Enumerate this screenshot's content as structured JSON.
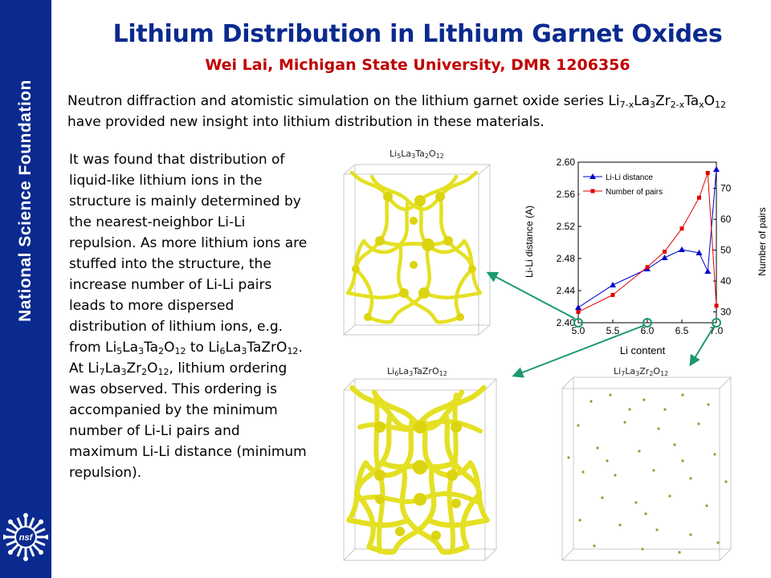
{
  "sidebar": {
    "title": "National Science Foundation",
    "logo_text": "nsf"
  },
  "header": {
    "title": "Lithium Distribution in Lithium Garnet Oxides",
    "subtitle": "Wei Lai, Michigan State University, DMR 1206356",
    "title_color": "#0b2a8f",
    "subtitle_color": "#c00000"
  },
  "intro": {
    "t1": "Neutron diffraction and atomistic simulation on the lithium garnet oxide series Li",
    "s1": "7-x",
    "t2": "La",
    "s2": "3",
    "t3": "Zr",
    "s3": "2-x",
    "t4": "Ta",
    "s4": "x",
    "t5": "O",
    "s5": "12",
    "t6": " have provided new insight into lithium distribution in these materials."
  },
  "body": {
    "p1": "It was found that distribution of liquid-like lithium ions in the structure is mainly determined by the nearest-neighbor Li-Li repulsion. As more lithium ions are stuffed into the structure, the increase number of Li-Li pairs leads to more dispersed distribution of lithium ions, e.g. from ",
    "f1": {
      "a": "Li",
      "b": "5",
      "c": "La",
      "d": "3",
      "e": "Ta",
      "f": "2",
      "g": "O",
      "h": "12"
    },
    "p2": " to ",
    "f2": {
      "a": "Li",
      "b": "6",
      "c": "La",
      "d": "3",
      "e": "TaZrO",
      "f": "12"
    },
    "p3": ". At ",
    "f3": {
      "a": "Li",
      "b": "7",
      "c": "La",
      "d": "3",
      "e": "Zr",
      "f": "2",
      "g": "O",
      "h": "12"
    },
    "p4": ", lithium ordering was observed. This ordering is accompanied by the minimum number of Li-Li pairs and maximum Li-Li distance (minimum repulsion)."
  },
  "structures": {
    "top": {
      "c1": "Li",
      "s1": "5",
      "c2": "La",
      "s2": "3",
      "c3": "Ta",
      "s3": "2",
      "c4": "O",
      "s4": "12"
    },
    "bottom_left": {
      "c1": "Li",
      "s1": "6",
      "c2": "La",
      "s2": "3",
      "c3": "TaZrO",
      "s3": "12"
    },
    "bottom_right": {
      "c1": "Li",
      "s1": "7",
      "c2": "La",
      "s2": "3",
      "c3": "Zr",
      "s3": "2",
      "c4": "O",
      "s4": "12"
    },
    "network_color": "#e6e000",
    "dot_color": "#9a9a30"
  },
  "chart_data": {
    "type": "line",
    "xlabel": "Li content",
    "ylabel": "Li-Li distance (A)",
    "y2label": "Number of pairs",
    "xlim": [
      5.0,
      7.0
    ],
    "ylim": [
      2.4,
      2.6
    ],
    "y2lim": [
      26.5,
      78.5
    ],
    "x_ticks": [
      "5.0",
      "5.5",
      "6.0",
      "6.5",
      "7.0"
    ],
    "y_ticks": [
      "2.40",
      "2.44",
      "2.48",
      "2.52",
      "2.56",
      "2.60"
    ],
    "y2_ticks": [
      "30",
      "40",
      "50",
      "60",
      "70"
    ],
    "legend_position": "top-left",
    "series": [
      {
        "name": "Li-Li distance",
        "axis": "left",
        "color": "#0000cc",
        "marker": "triangle",
        "x": [
          5.0,
          5.5,
          6.0,
          6.25,
          6.5,
          6.75,
          6.875,
          7.0
        ],
        "y": [
          2.419,
          2.447,
          2.467,
          2.481,
          2.491,
          2.487,
          2.464,
          2.591
        ]
      },
      {
        "name": "Number of pairs",
        "axis": "right",
        "color": "#e00000",
        "marker": "square",
        "x": [
          5.0,
          5.5,
          6.0,
          6.25,
          6.5,
          6.75,
          6.875,
          7.0
        ],
        "y": [
          30,
          35.5,
          44.5,
          49.5,
          57,
          67,
          75,
          32
        ]
      }
    ],
    "highlighted_x": [
      5.0,
      6.0,
      7.0
    ],
    "highlight_color": "#1a9a6a"
  }
}
